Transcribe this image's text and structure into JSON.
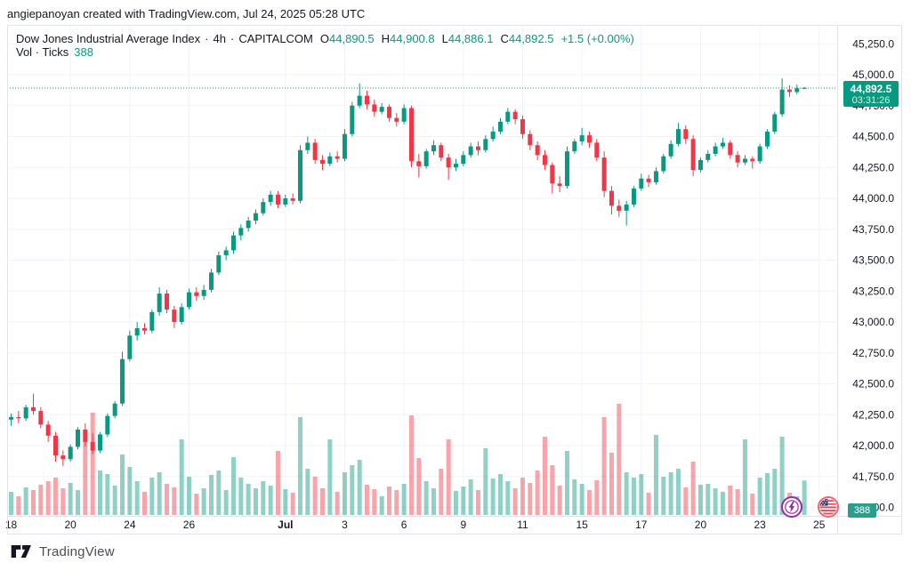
{
  "watermark": "angiepanoyan created with TradingView.com, Jul 24, 2025 05:28 UTC",
  "legend": {
    "title": "Dow Jones Industrial Average Index",
    "dot": "·",
    "interval": "4h",
    "exchange": "CAPITALCOM",
    "o_label": "O",
    "o_value": "44,890.5",
    "h_label": "H",
    "h_value": "44,900.8",
    "l_label": "L",
    "l_value": "44,886.1",
    "c_label": "C",
    "c_value": "44,892.5",
    "change": "+1.5 (+0.00%)",
    "vol_label": "Vol · Ticks",
    "vol_value": "388"
  },
  "price_axis": {
    "labels": [
      "45,250.0",
      "45,000.0",
      "44,750.0",
      "44,500.0",
      "44,250.0",
      "44,000.0",
      "43,750.0",
      "43,500.0",
      "43,250.0",
      "43,000.0",
      "42,750.0",
      "42,500.0",
      "42,250.0",
      "42,000.0",
      "41,750.0",
      "41,500.0"
    ],
    "top_value": 45250,
    "step": 250,
    "price_badge": {
      "price": "44,892.5",
      "countdown": "03:31:26"
    },
    "volume_badge": "388"
  },
  "time_axis": {
    "labels": [
      {
        "text": "18",
        "i": 0,
        "grid": false,
        "bold": false
      },
      {
        "text": "20",
        "i": 8,
        "grid": true,
        "bold": false
      },
      {
        "text": "24",
        "i": 16,
        "grid": true,
        "bold": false
      },
      {
        "text": "26",
        "i": 24,
        "grid": true,
        "bold": false
      },
      {
        "text": "Jul",
        "i": 37,
        "grid": true,
        "bold": true
      },
      {
        "text": "3",
        "i": 45,
        "grid": true,
        "bold": false
      },
      {
        "text": "6",
        "i": 53,
        "grid": true,
        "bold": false
      },
      {
        "text": "9",
        "i": 61,
        "grid": true,
        "bold": false
      },
      {
        "text": "11",
        "i": 69,
        "grid": true,
        "bold": false
      },
      {
        "text": "15",
        "i": 77,
        "grid": true,
        "bold": false
      },
      {
        "text": "17",
        "i": 85,
        "grid": true,
        "bold": false
      },
      {
        "text": "20",
        "i": 93,
        "grid": true,
        "bold": false
      },
      {
        "text": "23",
        "i": 101,
        "grid": true,
        "bold": false
      },
      {
        "text": "25",
        "i": 109,
        "grid": true,
        "bold": false
      }
    ]
  },
  "chart_data": {
    "type": "candlestick",
    "title": "Dow Jones Industrial Average Index",
    "interval": "4h",
    "exchange": "CAPITALCOM",
    "last_bar": {
      "open": 44890.5,
      "high": 44900.8,
      "low": 44886.1,
      "close": 44892.5,
      "change_text": "+1.5 (+0.00%)",
      "ticks": 388
    },
    "visible_price_range": [
      41500,
      45250
    ],
    "grid": true,
    "volume_unit": "ticks",
    "current_price_line": 44892.5,
    "candles_format": [
      "open",
      "high",
      "low",
      "close",
      "volume_ticks"
    ],
    "candles": [
      [
        42210,
        42260,
        42160,
        42230,
        260
      ],
      [
        42230,
        42280,
        42180,
        42220,
        210
      ],
      [
        42220,
        42330,
        42200,
        42310,
        310
      ],
      [
        42310,
        42420,
        42250,
        42280,
        280
      ],
      [
        42280,
        42310,
        42140,
        42170,
        340
      ],
      [
        42170,
        42200,
        42030,
        42080,
        380
      ],
      [
        42080,
        42110,
        41870,
        41920,
        420
      ],
      [
        41920,
        41960,
        41835,
        41890,
        300
      ],
      [
        41890,
        42010,
        41870,
        41990,
        360
      ],
      [
        41990,
        42150,
        41970,
        42130,
        280
      ],
      [
        42130,
        42180,
        41990,
        42030,
        950
      ],
      [
        42030,
        42100,
        41930,
        41960,
        1150
      ],
      [
        41960,
        42110,
        41940,
        42090,
        500
      ],
      [
        42090,
        42260,
        42070,
        42240,
        460
      ],
      [
        42240,
        42360,
        42220,
        42340,
        330
      ],
      [
        42340,
        42760,
        42320,
        42700,
        680
      ],
      [
        42700,
        42930,
        42680,
        42890,
        540
      ],
      [
        42890,
        43000,
        42850,
        42950,
        380
      ],
      [
        42950,
        42990,
        42900,
        42930,
        260
      ],
      [
        42930,
        43100,
        42910,
        43080,
        420
      ],
      [
        43080,
        43280,
        43050,
        43230,
        480
      ],
      [
        43230,
        43260,
        43070,
        43100,
        350
      ],
      [
        43100,
        43130,
        42950,
        43000,
        310
      ],
      [
        43000,
        43150,
        42980,
        43120,
        850
      ],
      [
        43120,
        43270,
        43100,
        43240,
        430
      ],
      [
        43240,
        43280,
        43170,
        43210,
        240
      ],
      [
        43210,
        43300,
        43180,
        43260,
        300
      ],
      [
        43260,
        43430,
        43240,
        43400,
        450
      ],
      [
        43400,
        43570,
        43380,
        43540,
        500
      ],
      [
        43540,
        43610,
        43500,
        43580,
        280
      ],
      [
        43580,
        43730,
        43550,
        43700,
        650
      ],
      [
        43700,
        43790,
        43660,
        43760,
        420
      ],
      [
        43760,
        43850,
        43730,
        43820,
        350
      ],
      [
        43820,
        43910,
        43790,
        43880,
        300
      ],
      [
        43880,
        44000,
        43860,
        43970,
        380
      ],
      [
        43970,
        44060,
        43940,
        44030,
        330
      ],
      [
        44030,
        44060,
        43920,
        43950,
        720
      ],
      [
        43950,
        44030,
        43930,
        44000,
        290
      ],
      [
        44000,
        44040,
        43950,
        43980,
        250
      ],
      [
        43980,
        44430,
        43960,
        44390,
        1100
      ],
      [
        44390,
        44500,
        44360,
        44450,
        520
      ],
      [
        44450,
        44480,
        44280,
        44310,
        430
      ],
      [
        44310,
        44350,
        44230,
        44280,
        300
      ],
      [
        44280,
        44370,
        44260,
        44340,
        850
      ],
      [
        44340,
        44380,
        44290,
        44320,
        260
      ],
      [
        44320,
        44560,
        44300,
        44520,
        480
      ],
      [
        44520,
        44780,
        44500,
        44750,
        560
      ],
      [
        44750,
        44930,
        44730,
        44830,
        620
      ],
      [
        44830,
        44870,
        44720,
        44760,
        340
      ],
      [
        44760,
        44800,
        44660,
        44700,
        290
      ],
      [
        44700,
        44770,
        44680,
        44740,
        210
      ],
      [
        44740,
        44760,
        44620,
        44650,
        320
      ],
      [
        44650,
        44690,
        44580,
        44620,
        280
      ],
      [
        44620,
        44760,
        44600,
        44730,
        350
      ],
      [
        44730,
        44750,
        44250,
        44300,
        1120
      ],
      [
        44300,
        44360,
        44170,
        44260,
        640
      ],
      [
        44260,
        44400,
        44240,
        44380,
        380
      ],
      [
        44380,
        44470,
        44350,
        44430,
        300
      ],
      [
        44430,
        44450,
        44300,
        44330,
        520
      ],
      [
        44330,
        44360,
        44150,
        44250,
        850
      ],
      [
        44250,
        44320,
        44220,
        44280,
        270
      ],
      [
        44280,
        44380,
        44260,
        44350,
        320
      ],
      [
        44350,
        44450,
        44330,
        44420,
        400
      ],
      [
        44420,
        44460,
        44350,
        44390,
        280
      ],
      [
        44390,
        44510,
        44370,
        44480,
        750
      ],
      [
        44480,
        44580,
        44460,
        44540,
        410
      ],
      [
        44540,
        44650,
        44520,
        44620,
        460
      ],
      [
        44620,
        44730,
        44600,
        44700,
        380
      ],
      [
        44700,
        44720,
        44600,
        44640,
        300
      ],
      [
        44640,
        44670,
        44480,
        44520,
        420
      ],
      [
        44520,
        44550,
        44390,
        44430,
        360
      ],
      [
        44430,
        44460,
        44310,
        44350,
        500
      ],
      [
        44350,
        44390,
        44230,
        44270,
        880
      ],
      [
        44270,
        44290,
        44040,
        44120,
        560
      ],
      [
        44120,
        44180,
        44050,
        44100,
        330
      ],
      [
        44100,
        44420,
        44080,
        44380,
        720
      ],
      [
        44380,
        44480,
        44360,
        44460,
        400
      ],
      [
        44460,
        44570,
        44430,
        44510,
        350
      ],
      [
        44510,
        44540,
        44410,
        44450,
        280
      ],
      [
        44450,
        44480,
        44300,
        44330,
        390
      ],
      [
        44330,
        44380,
        44010,
        44060,
        1100
      ],
      [
        44060,
        44100,
        43870,
        43940,
        700
      ],
      [
        43940,
        43990,
        43850,
        43900,
        1250
      ],
      [
        43900,
        43980,
        43780,
        43950,
        480
      ],
      [
        43950,
        44100,
        43930,
        44080,
        420
      ],
      [
        44080,
        44200,
        44060,
        44160,
        460
      ],
      [
        44160,
        44190,
        44090,
        44130,
        250
      ],
      [
        44130,
        44250,
        44110,
        44220,
        900
      ],
      [
        44220,
        44360,
        44200,
        44340,
        430
      ],
      [
        44340,
        44470,
        44320,
        44440,
        480
      ],
      [
        44440,
        44610,
        44420,
        44560,
        520
      ],
      [
        44560,
        44590,
        44440,
        44480,
        310
      ],
      [
        44480,
        44510,
        44180,
        44230,
        600
      ],
      [
        44230,
        44330,
        44210,
        44310,
        340
      ],
      [
        44310,
        44390,
        44290,
        44360,
        350
      ],
      [
        44360,
        44450,
        44340,
        44420,
        300
      ],
      [
        44420,
        44490,
        44400,
        44450,
        260
      ],
      [
        44450,
        44470,
        44320,
        44350,
        330
      ],
      [
        44350,
        44380,
        44250,
        44290,
        290
      ],
      [
        44290,
        44350,
        44270,
        44320,
        850
      ],
      [
        44320,
        44340,
        44240,
        44300,
        240
      ],
      [
        44300,
        44440,
        44280,
        44420,
        420
      ],
      [
        44420,
        44560,
        44400,
        44540,
        470
      ],
      [
        44540,
        44700,
        44520,
        44680,
        520
      ],
      [
        44680,
        44970,
        44660,
        44880,
        880
      ],
      [
        44880,
        44915,
        44820,
        44860,
        250
      ],
      [
        44860,
        44920,
        44840,
        44890,
        210
      ],
      [
        44890.5,
        44900.8,
        44886.1,
        44892.5,
        388
      ]
    ]
  },
  "colors": {
    "up": "#089981",
    "down": "#F23645",
    "vol_up": "rgba(8,153,129,0.45)",
    "vol_down": "rgba(242,54,69,0.45)",
    "grid": "#f0f3fa",
    "border": "#e0e3eb",
    "text": "#131722",
    "accent": "#089981"
  },
  "markers": {
    "lightning_icon": "lightning-event-icon",
    "flag_icon": "us-flag-event-icon"
  },
  "footer": {
    "brand": "TradingView"
  }
}
